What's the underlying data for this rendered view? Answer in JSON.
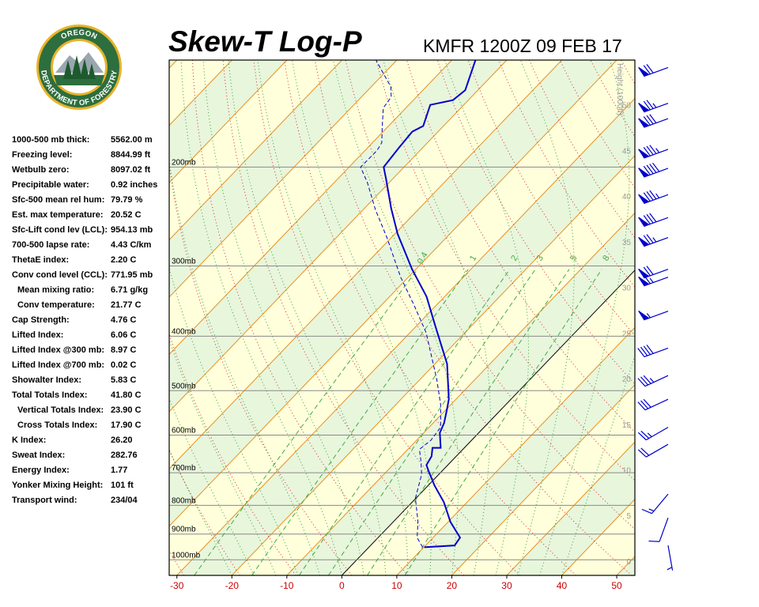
{
  "logo": {
    "top": "OREGON",
    "bottom": "DEPARTMENT OF FORESTRY"
  },
  "indices": [
    [
      "1000-500 mb thick:",
      "5562.00 m"
    ],
    [
      "Freezing level:",
      "8844.99 ft"
    ],
    [
      "Wetbulb zero:",
      "8097.02 ft"
    ],
    [
      "Precipitable water:",
      "0.92 inches"
    ],
    [
      "Sfc-500 mean rel hum:",
      "79.79 %"
    ],
    [
      "Est. max temperature:",
      "20.52 C"
    ],
    [
      "Sfc-Lift cond lev (LCL):",
      "954.13 mb"
    ],
    [
      "700-500 lapse rate:",
      "4.43 C/km"
    ],
    [
      "ThetaE index:",
      "2.20 C"
    ],
    [
      "Conv cond level (CCL):",
      "771.95 mb"
    ],
    [
      "Mean mixing ratio:",
      "6.71 g/kg"
    ],
    [
      "Conv temperature:",
      "21.77 C"
    ],
    [
      "Cap Strength:",
      "4.76 C"
    ],
    [
      "Lifted Index:",
      "6.06 C"
    ],
    [
      "Lifted Index @300 mb:",
      "8.97 C"
    ],
    [
      "Lifted Index @700 mb:",
      "0.02 C"
    ],
    [
      "Showalter Index:",
      "5.83 C"
    ],
    [
      "Total Totals Index:",
      "41.80 C"
    ],
    [
      "Vertical Totals Index:",
      "23.90 C"
    ],
    [
      "Cross Totals Index:",
      "17.90 C"
    ],
    [
      "K Index:",
      "26.20"
    ],
    [
      "Sweat Index:",
      "282.76"
    ],
    [
      "Energy Index:",
      "1.77"
    ],
    [
      "Yonker Mixing Height:",
      "101 ft"
    ],
    [
      "Transport wind:",
      "234/04"
    ]
  ],
  "chart_data": {
    "type": "skewt",
    "title": "Skew-T Log-P",
    "subtitle": "KMFR 1200Z 09 FEB 17",
    "xlim": [
      -31.4,
      53.3
    ],
    "xticks": [
      -30,
      -20,
      -10,
      0,
      10,
      20,
      30,
      40,
      50
    ],
    "x_tick_color": "#cc0000",
    "ylim": [
      1066,
      129
    ],
    "log_y": true,
    "yticks": [
      {
        "value": 1000,
        "label": "1000mb"
      },
      {
        "value": 900,
        "label": "900mb"
      },
      {
        "value": 800,
        "label": "800mb"
      },
      {
        "value": 700,
        "label": "700mb"
      },
      {
        "value": 600,
        "label": "600mb"
      },
      {
        "value": 500,
        "label": "500mb"
      },
      {
        "value": 400,
        "label": "400mb"
      },
      {
        "value": 300,
        "label": "300mb"
      },
      {
        "value": 200,
        "label": "200mb"
      }
    ],
    "grid": true,
    "series": [
      {
        "color": "#0000cc",
        "dashed": false,
        "x": [
          10.1,
          15.3,
          14.9,
          10.4,
          5.8,
          1.2,
          -2.2,
          -3.9,
          -4.5,
          -5.8,
          -4.3,
          -7.1,
          -8.0,
          -9.8,
          -11.3,
          -17.8,
          -26.5,
          -33.3,
          -40.7,
          -49.5,
          -55.1,
          -61.2,
          -63.7,
          -64.3,
          -64.7,
          -63.7,
          -66.1,
          -62.8,
          -62.3,
          -65.7
        ],
        "y": [
          950,
          943,
          913,
          856,
          790,
          738,
          698,
          678,
          654,
          632,
          632,
          594,
          571,
          541,
          518,
          448,
          384,
          340,
          304,
          263,
          237,
          210,
          200,
          185,
          173,
          169,
          155,
          152,
          146,
          129
        ]
      },
      {
        "color": "#0000cc",
        "dashed": true,
        "x": [
          9.8,
          7.1,
          4.5,
          -0.1,
          -3.1,
          -5.6,
          -7.9,
          -7.4,
          -7.9,
          -11.8,
          -16.9,
          -27.1,
          -34.1,
          -41.4,
          -50.8,
          -57.8,
          -64.0,
          -67.9,
          -67.8,
          -68.3,
          -70.9,
          -74.1,
          -74.6,
          -76.4,
          -83.8
        ],
        "y": [
          950,
          913,
          856,
          777,
          705,
          667,
          636,
          613,
          581,
          530,
          478,
          394,
          352,
          314,
          267,
          238,
          213,
          200,
          187,
          181,
          170,
          157,
          150,
          144,
          129
        ]
      }
    ],
    "mixing_ratio_lines": [
      0.4,
      1,
      2,
      3,
      5,
      8
    ],
    "height_axis": {
      "label": "Height (1000ft)",
      "lim": [
        -1.56,
        54.9
      ],
      "ticks": [
        0,
        5,
        10,
        15,
        20,
        25,
        30,
        35,
        40,
        45,
        50
      ]
    },
    "winds": {
      "color": "#0000cc",
      "pressure": [
        943,
        842,
        764,
        623,
        581,
        518,
        470,
        420,
        361,
        314,
        304,
        267,
        246,
        224,
        201,
        186,
        164,
        154,
        133
      ],
      "direction": [
        170,
        200,
        220,
        240,
        240,
        245,
        245,
        250,
        250,
        250,
        250,
        250,
        250,
        250,
        250,
        250,
        250,
        250,
        250
      ],
      "speed": [
        5,
        10,
        15,
        20,
        25,
        30,
        35,
        40,
        55,
        65,
        70,
        75,
        80,
        85,
        90,
        85,
        80,
        75,
        70
      ]
    }
  }
}
